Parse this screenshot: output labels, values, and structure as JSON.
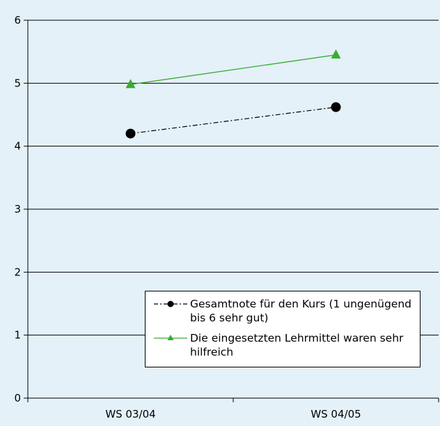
{
  "chart_data": {
    "type": "line",
    "categories": [
      "WS 03/04",
      "WS 04/05"
    ],
    "series": [
      {
        "name": "Gesamtnote für den Kurs (1 ungenügend bis 6 sehr gut)",
        "values": [
          4.2,
          4.62
        ],
        "color": "#000000",
        "line_style": "dash-dot",
        "marker": "circle"
      },
      {
        "name": "Die eingesetzten Lehrmittel waren sehr hilfreich",
        "values": [
          4.98,
          5.45
        ],
        "color": "#3aaa35",
        "line_style": "solid",
        "marker": "triangle"
      }
    ],
    "ylim": [
      0,
      6
    ],
    "yticks": [
      "0",
      "1",
      "2",
      "3",
      "4",
      "5",
      "6"
    ],
    "grid": true,
    "legend_position": "bottom-right",
    "colors": {
      "background": "#e4f1f8",
      "gridline": "#000000"
    }
  }
}
